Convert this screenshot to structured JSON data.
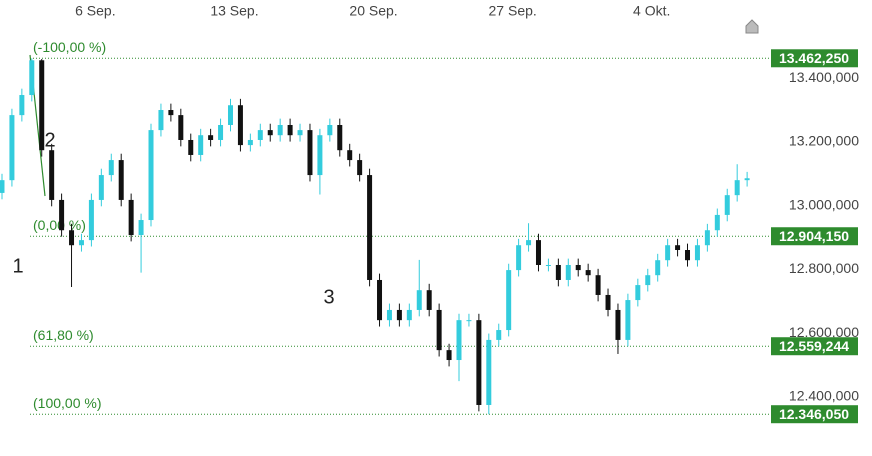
{
  "chart_data": {
    "type": "candlestick",
    "x": [
      1.3,
      1.8,
      2.3,
      2.8,
      3.3,
      3.8,
      4.3,
      4.8,
      5.3,
      5.8,
      6.3,
      6.8,
      7.3,
      7.8,
      8.3,
      8.8,
      9.3,
      9.8,
      10.3,
      10.8,
      11.3,
      11.8,
      12.3,
      12.8,
      13.3,
      13.8,
      14.3,
      14.8,
      15.3,
      15.8,
      16.3,
      16.8,
      17.3,
      17.8,
      18.3,
      18.8,
      19.3,
      19.8,
      20.3,
      20.8,
      21.3,
      21.8,
      22.3,
      22.8,
      23.3,
      23.8,
      24.3,
      24.8,
      25.3,
      25.8,
      26.3,
      26.8,
      27.3,
      27.8,
      28.3,
      28.8,
      29.3,
      29.8,
      30.3,
      30.8,
      31.3,
      31.8,
      32.3,
      32.8,
      33.3,
      33.8,
      34.3,
      34.8,
      35.3,
      35.8,
      36.3,
      36.8,
      37.3,
      37.8,
      38.3,
      38.8
    ],
    "open": [
      13040,
      13080,
      13284,
      13347,
      13456,
      13174,
      13018,
      12923,
      12876,
      12892,
      13018,
      13096,
      13143,
      13018,
      12908,
      12955,
      13237,
      13300,
      13284,
      13206,
      13159,
      13221,
      13206,
      13253,
      13315,
      13190,
      13206,
      13237,
      13221,
      13253,
      13221,
      13237,
      13096,
      13221,
      13253,
      13174,
      13143,
      13096,
      12767,
      12641,
      12673,
      12641,
      12673,
      12735,
      12673,
      12547,
      12516,
      12641,
      12641,
      12375,
      12579,
      12610,
      12798,
      12876,
      12892,
      12814,
      12814,
      12767,
      12814,
      12798,
      12782,
      12720,
      12673,
      12579,
      12704,
      12751,
      12782,
      12829,
      12876,
      12861,
      12829,
      12876,
      12923,
      12971,
      13033,
      13080
    ],
    "high": [
      13100,
      13304,
      13367,
      13462,
      13460,
      13194,
      13038,
      12943,
      12912,
      13038,
      13116,
      13163,
      13163,
      13038,
      12975,
      13257,
      13320,
      13320,
      13304,
      13226,
      13241,
      13241,
      13273,
      13335,
      13335,
      13226,
      13257,
      13257,
      13273,
      13273,
      13257,
      13257,
      13241,
      13273,
      13273,
      13194,
      13163,
      13116,
      12787,
      12693,
      12693,
      12693,
      12830,
      12755,
      12693,
      12567,
      12661,
      12661,
      12661,
      12599,
      12630,
      12818,
      12896,
      12945,
      12912,
      12834,
      12834,
      12834,
      12834,
      12818,
      12802,
      12740,
      12693,
      12724,
      12771,
      12802,
      12849,
      12896,
      12896,
      12881,
      12896,
      12943,
      12991,
      13053,
      13130,
      13106
    ],
    "low": [
      13020,
      13060,
      13264,
      13327,
      13154,
      12998,
      12903,
      12745,
      12856,
      12872,
      12998,
      13076,
      12998,
      12888,
      12790,
      12935,
      13217,
      13264,
      13186,
      13139,
      13139,
      13186,
      13186,
      13233,
      13170,
      13170,
      13186,
      13201,
      13201,
      13201,
      13201,
      13076,
      13035,
      13201,
      13154,
      13123,
      13076,
      12747,
      12621,
      12621,
      12621,
      12621,
      12653,
      12653,
      12527,
      12496,
      12450,
      12621,
      12355,
      12346,
      12559,
      12590,
      12778,
      12856,
      12794,
      12794,
      12747,
      12747,
      12778,
      12762,
      12700,
      12653,
      12535,
      12559,
      12684,
      12731,
      12762,
      12809,
      12841,
      12809,
      12809,
      12856,
      12903,
      12951,
      13013,
      13060
    ],
    "close": [
      13080,
      13284,
      13347,
      13456,
      13174,
      13018,
      12923,
      12876,
      12892,
      13018,
      13096,
      13143,
      13018,
      12908,
      12955,
      13237,
      13300,
      13284,
      13206,
      13159,
      13221,
      13206,
      13253,
      13315,
      13190,
      13206,
      13237,
      13221,
      13253,
      13221,
      13237,
      13096,
      13221,
      13253,
      13174,
      13143,
      13096,
      12767,
      12641,
      12673,
      12641,
      12673,
      12735,
      12673,
      12547,
      12516,
      12641,
      12641,
      12375,
      12579,
      12610,
      12798,
      12876,
      12892,
      12814,
      12814,
      12767,
      12814,
      12798,
      12782,
      12720,
      12673,
      12579,
      12704,
      12751,
      12782,
      12829,
      12876,
      12861,
      12829,
      12876,
      12923,
      12971,
      13033,
      13080,
      13086
    ],
    "up_color": "#33ccdd",
    "down_color": "#111111",
    "xlim": [
      1.2,
      39.7
    ],
    "xticks": [
      {
        "value": 6,
        "label": "6 Sep."
      },
      {
        "value": 13,
        "label": "13 Sep."
      },
      {
        "value": 20,
        "label": "20 Sep."
      },
      {
        "value": 27,
        "label": "27 Sep."
      },
      {
        "value": 34,
        "label": "4 Okt."
      }
    ],
    "ylim": [
      12215,
      13645
    ],
    "yticks": [
      {
        "value": 12400,
        "label": "12.400,000"
      },
      {
        "value": 12600,
        "label": "12.600,000"
      },
      {
        "value": 12800,
        "label": "12.800,000"
      },
      {
        "value": 13000,
        "label": "13.000,000"
      },
      {
        "value": 13200,
        "label": "13.200,000"
      },
      {
        "value": 13400,
        "label": "13.400,000"
      }
    ],
    "levels": [
      {
        "label": "(-100,00 %)",
        "value": 13462.25,
        "value_label": "13.462,250"
      },
      {
        "label": "(0,00 %)",
        "value": 12904.15,
        "value_label": "12.904,150"
      },
      {
        "label": "(61,80 %)",
        "value": 12559.244,
        "value_label": "12.559,244"
      },
      {
        "label": "(100,00 %)",
        "value": 12346.05,
        "value_label": "12.346,050"
      }
    ],
    "level_color": "#2e8b2e",
    "annotations": [
      "1",
      "2",
      "3"
    ]
  }
}
